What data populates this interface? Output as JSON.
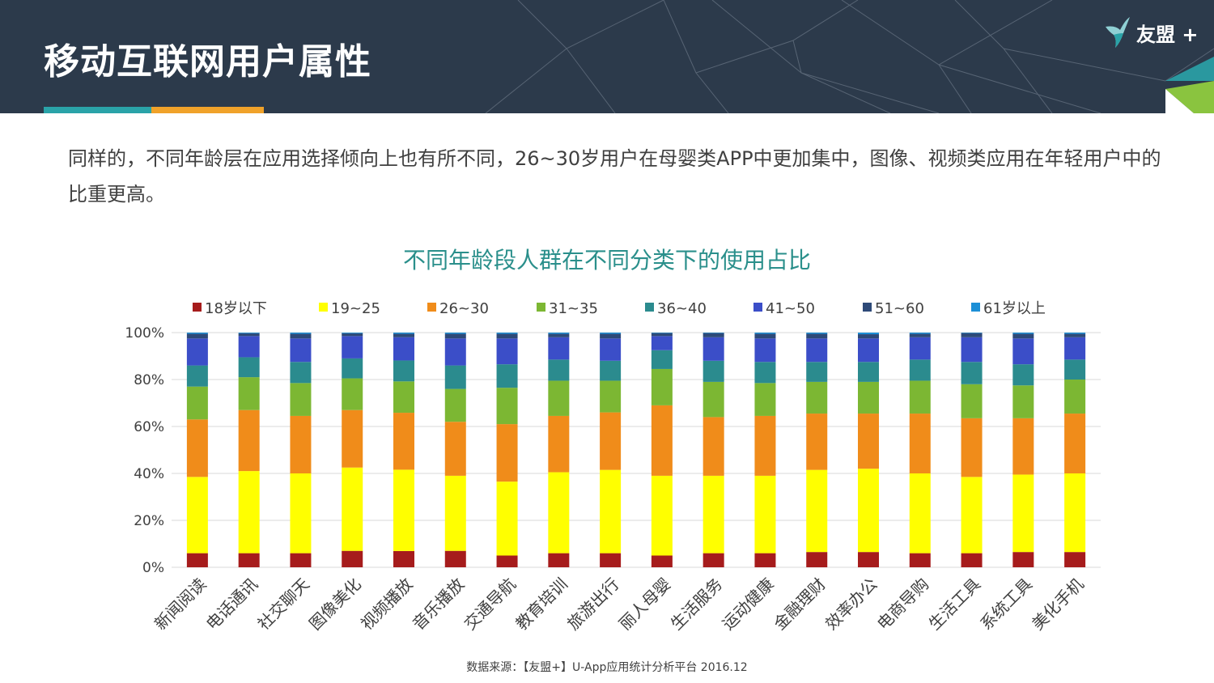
{
  "header": {
    "title": "移动互联网用户属性",
    "logo_text": "友盟 +"
  },
  "intro": {
    "text": "同样的，不同年龄层在应用选择倾向上也有所不同，26~30岁用户在母婴类APP中更加集中，图像、视频类应用在年轻用户中的比重更高。"
  },
  "source": "数据来源：【友盟+】U-App应用统计分析平台 2016.12",
  "chart_data": {
    "type": "bar",
    "stacked": true,
    "title": "不同年龄段人群在不同分类下的使用占比",
    "xlabel": "",
    "ylabel": "",
    "ylim": [
      0,
      100
    ],
    "yticks": [
      "0%",
      "20%",
      "40%",
      "60%",
      "80%",
      "100%"
    ],
    "ytick_values": [
      0,
      20,
      40,
      60,
      80,
      100
    ],
    "grid": true,
    "legend_position": "top",
    "categories": [
      "新闻阅读",
      "电话通讯",
      "社交聊天",
      "图像美化",
      "视频播放",
      "音乐播放",
      "交通导航",
      "教育培训",
      "旅游出行",
      "丽人母婴",
      "生活服务",
      "运动健康",
      "金融理财",
      "效率办公",
      "电商导购",
      "生活工具",
      "系统工具",
      "美化手机"
    ],
    "series": [
      {
        "name": "18岁以下",
        "color": "#a61c1c",
        "values": [
          6,
          6,
          6,
          7,
          7,
          7,
          5,
          6,
          6,
          5,
          6,
          6,
          6.5,
          6.5,
          6,
          6,
          6.5,
          6.5
        ]
      },
      {
        "name": "19~25",
        "color": "#ffff00",
        "values": [
          32.5,
          35,
          34,
          35.5,
          35,
          32,
          31.5,
          34.5,
          35.5,
          34,
          33,
          33,
          35,
          35.5,
          34,
          32.5,
          33,
          33.5
        ]
      },
      {
        "name": "26~30",
        "color": "#f08c1a",
        "values": [
          24.5,
          26,
          24.5,
          24.5,
          24.5,
          23,
          24.5,
          24,
          24.5,
          30,
          25,
          25.5,
          24,
          23.5,
          25.5,
          25,
          24,
          25.5
        ]
      },
      {
        "name": "31~35",
        "color": "#7cb733",
        "values": [
          14,
          14,
          14,
          13.5,
          13.5,
          14,
          15.5,
          15,
          13.5,
          15.5,
          15,
          14,
          13.5,
          13.5,
          14,
          14.5,
          14,
          14.5
        ]
      },
      {
        "name": "36~40",
        "color": "#2b8b8e",
        "values": [
          9,
          8.5,
          9,
          8.5,
          9,
          10,
          10,
          9,
          8.5,
          8,
          9,
          9,
          8.5,
          8.5,
          9,
          9.5,
          9,
          8.5
        ]
      },
      {
        "name": "41~50",
        "color": "#3b4ec8",
        "values": [
          11.5,
          9,
          10,
          9.5,
          10,
          11.5,
          11,
          9.5,
          9.5,
          6,
          10,
          10,
          10,
          10,
          9.5,
          10.5,
          11,
          9.5
        ]
      },
      {
        "name": "51~60",
        "color": "#2e4a78",
        "values": [
          2,
          1.2,
          2,
          1.2,
          1.5,
          2,
          2,
          1.5,
          2,
          1.3,
          1.8,
          2,
          2,
          1.8,
          1.5,
          1.8,
          2,
          1.5
        ]
      },
      {
        "name": "61岁以上",
        "color": "#1c8fd6",
        "values": [
          0.5,
          0.3,
          0.5,
          0.3,
          0.5,
          0.5,
          0.5,
          0.5,
          0.5,
          0.2,
          0.2,
          0.5,
          0.5,
          0.7,
          0.5,
          0.2,
          0.5,
          0.5
        ]
      }
    ]
  }
}
